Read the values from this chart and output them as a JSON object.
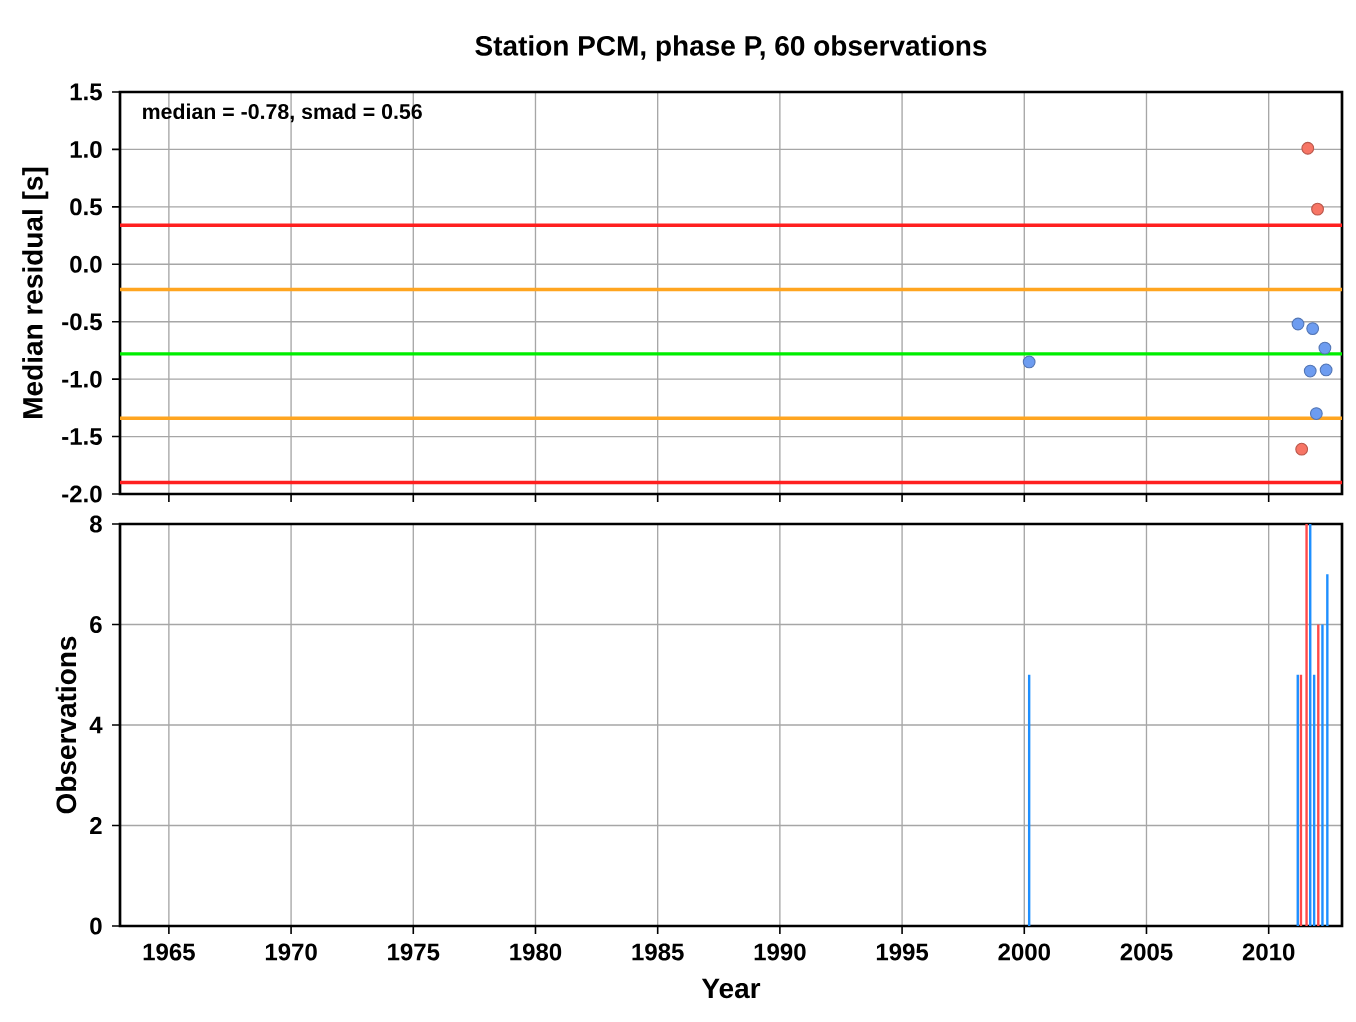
{
  "chart_data": [
    {
      "type": "scatter",
      "title": "Station PCM, phase P, 60 observations",
      "ylabel": "Median residual [s]",
      "annotations": [
        "median = -0.78, smad = 0.56"
      ],
      "series": [
        {
          "color": "#f77565",
          "x": [
            2011.6,
            2012.0,
            2011.35
          ],
          "values": [
            1.01,
            0.48,
            -1.61
          ]
        },
        {
          "color": "#6d9cf0",
          "x": [
            2000.2,
            2011.2,
            2011.8,
            2012.3,
            2011.7,
            2012.35,
            2011.95
          ],
          "values": [
            -0.85,
            -0.52,
            -0.56,
            -0.73,
            -0.93,
            -0.92,
            -1.3
          ]
        }
      ],
      "marker": "circle",
      "xlim": [
        1963,
        2013
      ],
      "xticks": [
        1965,
        1970,
        1975,
        1980,
        1985,
        1990,
        1995,
        2000,
        2005,
        2010
      ],
      "ylim": [
        -2.0,
        1.5
      ],
      "yticks": [
        {
          "value": -2,
          "label": "-2.0"
        },
        {
          "value": -1.5,
          "label": "-1.5"
        },
        {
          "value": -1,
          "label": "-1.0"
        },
        {
          "value": -0.5,
          "label": "-0.5"
        },
        {
          "value": 0,
          "label": "0.0"
        },
        {
          "value": 0.5,
          "label": "0.5"
        },
        {
          "value": 1,
          "label": "1.0"
        },
        {
          "value": 1.5,
          "label": "1.5"
        }
      ],
      "ref_lines": [
        {
          "axis": "y",
          "value": 0.34,
          "color": "#ff2020"
        },
        {
          "axis": "y",
          "value": -0.22,
          "color": "#ffa520"
        },
        {
          "axis": "y",
          "value": -0.78,
          "color": "#00ee00"
        },
        {
          "axis": "y",
          "value": -1.34,
          "color": "#ffa520"
        },
        {
          "axis": "y",
          "value": -1.9,
          "color": "#ff2020"
        }
      ],
      "grid": true,
      "tick_labels": "y"
    },
    {
      "type": "bar",
      "xlabel": "Year",
      "ylabel": "Observations",
      "series": [
        {
          "color": "#1e8fff",
          "x": [
            2000.2,
            2011.19,
            2011.7,
            2011.86,
            2012.2,
            2012.4
          ],
          "values": [
            5,
            5,
            8,
            5,
            6,
            7
          ]
        },
        {
          "color": "#ff4a4a",
          "x": [
            2011.32,
            2011.55,
            2012.03
          ],
          "values": [
            5,
            8,
            6
          ]
        }
      ],
      "xlim": [
        1963,
        2013
      ],
      "xticks": [
        1965,
        1970,
        1975,
        1980,
        1985,
        1990,
        1995,
        2000,
        2005,
        2010
      ],
      "ylim": [
        0,
        8
      ],
      "yticks": [
        0,
        2,
        4,
        6,
        8
      ],
      "grid": true
    }
  ]
}
